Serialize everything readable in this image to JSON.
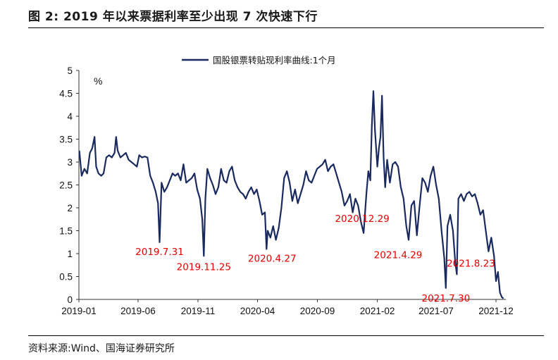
{
  "figure": {
    "title": "图 2:  2019 年以来票据利率至少出现 7 次快速下行",
    "source": "资料来源:Wind、国海证券研究所"
  },
  "chart_data": {
    "type": "line",
    "unit_label": "%",
    "ylim": [
      0,
      5
    ],
    "y_ticks": [
      "0",
      "0.5",
      "1",
      "1.5",
      "2",
      "2.5",
      "3",
      "3.5",
      "4",
      "4.5",
      "5"
    ],
    "x_ticks": [
      "2019-01",
      "2019-06",
      "2019-11",
      "2020-04",
      "2020-09",
      "2021-02",
      "2021-07",
      "2021-12"
    ],
    "legend_position": "top-center",
    "grid": false,
    "colors": {
      "line": "#1b2a5e",
      "annotation": "#e60000"
    },
    "series": [
      {
        "name": "国股银票转贴现利率曲线:1个月",
        "points": [
          [
            "2019-01-02",
            3.25
          ],
          [
            "2019-01-08",
            2.7
          ],
          [
            "2019-01-15",
            2.85
          ],
          [
            "2019-01-22",
            2.75
          ],
          [
            "2019-01-29",
            3.2
          ],
          [
            "2019-02-04",
            3.3
          ],
          [
            "2019-02-10",
            3.55
          ],
          [
            "2019-02-14",
            2.9
          ],
          [
            "2019-02-20",
            2.75
          ],
          [
            "2019-02-27",
            2.7
          ],
          [
            "2019-03-05",
            2.75
          ],
          [
            "2019-03-12",
            3.1
          ],
          [
            "2019-03-19",
            3.15
          ],
          [
            "2019-03-26",
            3.1
          ],
          [
            "2019-04-02",
            3.2
          ],
          [
            "2019-04-06",
            3.55
          ],
          [
            "2019-04-10",
            3.25
          ],
          [
            "2019-04-17",
            3.1
          ],
          [
            "2019-04-24",
            3.15
          ],
          [
            "2019-05-01",
            3.2
          ],
          [
            "2019-05-08",
            3.05
          ],
          [
            "2019-05-15",
            3.0
          ],
          [
            "2019-05-22",
            2.95
          ],
          [
            "2019-05-29",
            2.9
          ],
          [
            "2019-06-04",
            3.15
          ],
          [
            "2019-06-11",
            3.1
          ],
          [
            "2019-06-18",
            3.12
          ],
          [
            "2019-06-25",
            3.1
          ],
          [
            "2019-07-02",
            2.7
          ],
          [
            "2019-07-09",
            2.55
          ],
          [
            "2019-07-16",
            2.35
          ],
          [
            "2019-07-22",
            2.1
          ],
          [
            "2019-07-26",
            1.25
          ],
          [
            "2019-07-31",
            2.55
          ],
          [
            "2019-08-07",
            2.35
          ],
          [
            "2019-08-14",
            2.45
          ],
          [
            "2019-08-21",
            2.6
          ],
          [
            "2019-08-28",
            2.75
          ],
          [
            "2019-09-04",
            2.7
          ],
          [
            "2019-09-11",
            2.75
          ],
          [
            "2019-09-18",
            2.6
          ],
          [
            "2019-09-25",
            2.95
          ],
          [
            "2019-10-02",
            2.55
          ],
          [
            "2019-10-09",
            2.6
          ],
          [
            "2019-10-16",
            2.65
          ],
          [
            "2019-10-23",
            2.75
          ],
          [
            "2019-10-30",
            2.4
          ],
          [
            "2019-11-06",
            2.2
          ],
          [
            "2019-11-12",
            1.75
          ],
          [
            "2019-11-16",
            0.95
          ],
          [
            "2019-11-20",
            2.2
          ],
          [
            "2019-11-25",
            2.85
          ],
          [
            "2019-12-02",
            2.65
          ],
          [
            "2019-12-09",
            2.5
          ],
          [
            "2019-12-16",
            2.3
          ],
          [
            "2019-12-23",
            2.45
          ],
          [
            "2019-12-30",
            2.85
          ],
          [
            "2020-01-06",
            2.6
          ],
          [
            "2020-01-13",
            2.55
          ],
          [
            "2020-01-20",
            2.8
          ],
          [
            "2020-01-27",
            2.9
          ],
          [
            "2020-02-03",
            2.6
          ],
          [
            "2020-02-10",
            2.45
          ],
          [
            "2020-02-17",
            2.35
          ],
          [
            "2020-02-24",
            2.3
          ],
          [
            "2020-03-02",
            2.2
          ],
          [
            "2020-03-09",
            2.35
          ],
          [
            "2020-03-16",
            2.45
          ],
          [
            "2020-03-23",
            2.3
          ],
          [
            "2020-03-30",
            2.4
          ],
          [
            "2020-04-06",
            2.15
          ],
          [
            "2020-04-13",
            1.85
          ],
          [
            "2020-04-20",
            1.9
          ],
          [
            "2020-04-24",
            1.1
          ],
          [
            "2020-04-27",
            1.5
          ],
          [
            "2020-05-04",
            1.35
          ],
          [
            "2020-05-11",
            1.6
          ],
          [
            "2020-05-18",
            1.3
          ],
          [
            "2020-05-25",
            1.55
          ],
          [
            "2020-06-01",
            2.0
          ],
          [
            "2020-06-08",
            2.65
          ],
          [
            "2020-06-15",
            2.8
          ],
          [
            "2020-06-22",
            2.55
          ],
          [
            "2020-06-29",
            2.15
          ],
          [
            "2020-07-06",
            2.4
          ],
          [
            "2020-07-13",
            2.1
          ],
          [
            "2020-07-20",
            2.3
          ],
          [
            "2020-07-27",
            2.5
          ],
          [
            "2020-08-03",
            2.8
          ],
          [
            "2020-08-10",
            2.6
          ],
          [
            "2020-08-17",
            2.55
          ],
          [
            "2020-08-24",
            2.7
          ],
          [
            "2020-08-31",
            2.85
          ],
          [
            "2020-09-07",
            2.9
          ],
          [
            "2020-09-14",
            2.95
          ],
          [
            "2020-09-21",
            3.05
          ],
          [
            "2020-09-28",
            2.8
          ],
          [
            "2020-10-05",
            2.9
          ],
          [
            "2020-10-12",
            2.95
          ],
          [
            "2020-10-19",
            2.75
          ],
          [
            "2020-10-26",
            2.55
          ],
          [
            "2020-11-02",
            2.35
          ],
          [
            "2020-11-09",
            2.05
          ],
          [
            "2020-11-16",
            2.15
          ],
          [
            "2020-11-23",
            2.3
          ],
          [
            "2020-11-30",
            1.9
          ],
          [
            "2020-12-07",
            2.2
          ],
          [
            "2020-12-14",
            2.05
          ],
          [
            "2020-12-21",
            1.7
          ],
          [
            "2020-12-28",
            1.45
          ],
          [
            "2021-01-04",
            2.3
          ],
          [
            "2021-01-09",
            2.8
          ],
          [
            "2021-01-14",
            2.6
          ],
          [
            "2021-01-18",
            3.8
          ],
          [
            "2021-01-22",
            4.55
          ],
          [
            "2021-01-26",
            3.7
          ],
          [
            "2021-02-01",
            2.9
          ],
          [
            "2021-02-05",
            3.3
          ],
          [
            "2021-02-09",
            3.55
          ],
          [
            "2021-02-13",
            4.45
          ],
          [
            "2021-02-17",
            3.1
          ],
          [
            "2021-02-21",
            2.45
          ],
          [
            "2021-02-26",
            3.05
          ],
          [
            "2021-03-05",
            2.55
          ],
          [
            "2021-03-12",
            2.95
          ],
          [
            "2021-03-19",
            3.0
          ],
          [
            "2021-03-26",
            2.9
          ],
          [
            "2021-04-02",
            2.45
          ],
          [
            "2021-04-09",
            2.2
          ],
          [
            "2021-04-16",
            1.6
          ],
          [
            "2021-04-22",
            1.3
          ],
          [
            "2021-04-29",
            2.05
          ],
          [
            "2021-05-06",
            2.15
          ],
          [
            "2021-05-13",
            1.4
          ],
          [
            "2021-05-20",
            2.05
          ],
          [
            "2021-05-27",
            2.65
          ],
          [
            "2021-06-03",
            2.55
          ],
          [
            "2021-06-10",
            2.35
          ],
          [
            "2021-06-17",
            2.7
          ],
          [
            "2021-06-24",
            2.9
          ],
          [
            "2021-07-01",
            2.5
          ],
          [
            "2021-07-08",
            2.2
          ],
          [
            "2021-07-15",
            1.5
          ],
          [
            "2021-07-22",
            0.9
          ],
          [
            "2021-07-26",
            0.25
          ],
          [
            "2021-07-30",
            1.6
          ],
          [
            "2021-08-06",
            1.85
          ],
          [
            "2021-08-13",
            1.5
          ],
          [
            "2021-08-19",
            0.8
          ],
          [
            "2021-08-23",
            0.55
          ],
          [
            "2021-08-27",
            2.2
          ],
          [
            "2021-09-03",
            2.3
          ],
          [
            "2021-09-10",
            2.15
          ],
          [
            "2021-09-17",
            2.3
          ],
          [
            "2021-09-24",
            2.35
          ],
          [
            "2021-10-01",
            2.25
          ],
          [
            "2021-10-08",
            2.3
          ],
          [
            "2021-10-15",
            2.1
          ],
          [
            "2021-10-22",
            1.85
          ],
          [
            "2021-10-29",
            1.95
          ],
          [
            "2021-11-05",
            1.5
          ],
          [
            "2021-11-12",
            1.05
          ],
          [
            "2021-11-19",
            1.35
          ],
          [
            "2021-11-26",
            0.95
          ],
          [
            "2021-12-01",
            0.4
          ],
          [
            "2021-12-06",
            0.6
          ],
          [
            "2021-12-11",
            0.15
          ],
          [
            "2021-12-16",
            0.05
          ],
          [
            "2021-12-20",
            0.02
          ]
        ]
      }
    ],
    "annotations": [
      {
        "text": "2019.7.31",
        "date": "2019-07-26",
        "value": 1.25
      },
      {
        "text": "2019.11.25",
        "date": "2019-11-16",
        "value": 0.95
      },
      {
        "text": "2020.4.27",
        "date": "2020-04-24",
        "value": 1.1
      },
      {
        "text": "2020.12.29",
        "date": "2020-12-28",
        "value": 1.45
      },
      {
        "text": "2021.4.29",
        "date": "2021-04-22",
        "value": 1.3
      },
      {
        "text": "2021.8.23",
        "date": "2021-08-23",
        "value": 0.55
      },
      {
        "text": "2021.7.30",
        "date": "2021-07-26",
        "value": 0.25
      }
    ]
  }
}
